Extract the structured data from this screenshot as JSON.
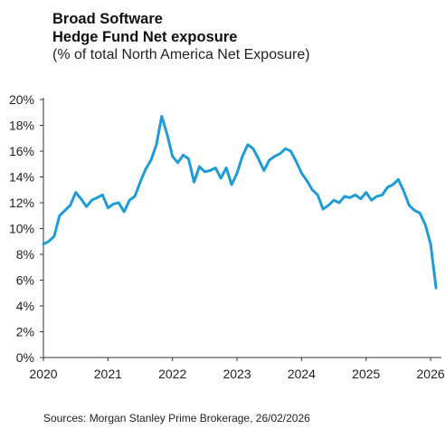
{
  "title_line1": "Broad Software",
  "title_line2": "Hedge Fund Net exposure",
  "subtitle": "(% of total North America Net Exposure)",
  "source": "Sources: Morgan Stanley Prime Brokerage, 26/02/2026",
  "chart_data": {
    "type": "line",
    "title": "Broad Software Hedge Fund Net exposure",
    "subtitle": "(% of total North America Net Exposure)",
    "xlabel": "",
    "ylabel": "",
    "x_ticks": [
      "2020",
      "2021",
      "2022",
      "2023",
      "2024",
      "2025",
      "2026"
    ],
    "y_ticks": [
      "0%",
      "2%",
      "4%",
      "6%",
      "8%",
      "10%",
      "12%",
      "14%",
      "16%",
      "18%",
      "20%"
    ],
    "xlim": [
      "2020-01",
      "2026-03"
    ],
    "ylim": [
      0,
      20
    ],
    "grid": false,
    "color": "#1f9bd7",
    "series": [
      {
        "x": [
          "2020-01",
          "2020-02",
          "2020-03",
          "2020-04",
          "2020-05",
          "2020-06",
          "2020-07",
          "2020-08",
          "2020-09",
          "2020-10",
          "2020-11",
          "2020-12",
          "2021-01",
          "2021-02",
          "2021-03",
          "2021-04",
          "2021-05",
          "2021-06",
          "2021-07",
          "2021-08",
          "2021-09",
          "2021-10",
          "2021-11",
          "2021-12",
          "2022-01",
          "2022-02",
          "2022-03",
          "2022-04",
          "2022-05",
          "2022-06",
          "2022-07",
          "2022-08",
          "2022-09",
          "2022-10",
          "2022-11",
          "2022-12",
          "2023-01",
          "2023-02",
          "2023-03",
          "2023-04",
          "2023-05",
          "2023-06",
          "2023-07",
          "2023-08",
          "2023-09",
          "2023-10",
          "2023-11",
          "2023-12",
          "2024-01",
          "2024-02",
          "2024-03",
          "2024-04",
          "2024-05",
          "2024-06",
          "2024-07",
          "2024-08",
          "2024-09",
          "2024-10",
          "2024-11",
          "2024-12",
          "2025-01",
          "2025-02",
          "2025-03",
          "2025-04",
          "2025-05",
          "2025-06",
          "2025-07",
          "2025-08",
          "2025-09",
          "2025-10",
          "2025-11",
          "2025-12",
          "2026-01",
          "2026-02"
        ],
        "y": [
          8.8,
          9.0,
          9.4,
          11.0,
          11.4,
          11.8,
          12.8,
          12.3,
          11.7,
          12.2,
          12.4,
          12.6,
          11.6,
          11.9,
          12.0,
          11.3,
          12.2,
          12.5,
          13.6,
          14.6,
          15.3,
          16.5,
          18.7,
          17.3,
          15.6,
          15.1,
          15.7,
          15.4,
          13.6,
          14.8,
          14.4,
          14.5,
          14.7,
          13.9,
          14.7,
          13.4,
          14.3,
          15.6,
          16.5,
          16.2,
          15.4,
          14.5,
          15.3,
          15.6,
          15.8,
          16.2,
          16.0,
          15.2,
          14.3,
          13.7,
          13.0,
          12.6,
          11.5,
          11.8,
          12.2,
          12.0,
          12.5,
          12.4,
          12.6,
          12.3,
          12.8,
          12.2,
          12.5,
          12.6,
          13.2,
          13.4,
          13.8,
          12.9,
          11.8,
          11.4,
          11.2,
          10.3,
          8.8,
          5.4
        ]
      }
    ]
  }
}
